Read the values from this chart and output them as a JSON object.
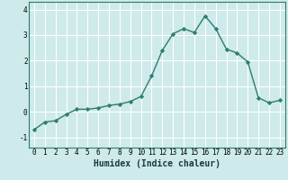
{
  "title": "",
  "xlabel": "Humidex (Indice chaleur)",
  "ylabel": "",
  "x": [
    0,
    1,
    2,
    3,
    4,
    5,
    6,
    7,
    8,
    9,
    10,
    11,
    12,
    13,
    14,
    15,
    16,
    17,
    18,
    19,
    20,
    21,
    22,
    23
  ],
  "y": [
    -0.7,
    -0.4,
    -0.35,
    -0.1,
    0.1,
    0.1,
    0.15,
    0.25,
    0.3,
    0.4,
    0.6,
    1.4,
    2.4,
    3.05,
    3.25,
    3.1,
    3.75,
    3.25,
    2.45,
    2.3,
    1.95,
    0.55,
    0.35,
    0.45
  ],
  "line_color": "#2e7d6e",
  "marker": "D",
  "marker_size": 2.2,
  "bg_color": "#ceeaea",
  "grid_color": "#ffffff",
  "ylim": [
    -1.4,
    4.3
  ],
  "xlim": [
    -0.5,
    23.5
  ],
  "yticks": [
    -1,
    0,
    1,
    2,
    3,
    4
  ],
  "xticks": [
    0,
    1,
    2,
    3,
    4,
    5,
    6,
    7,
    8,
    9,
    10,
    11,
    12,
    13,
    14,
    15,
    16,
    17,
    18,
    19,
    20,
    21,
    22,
    23
  ],
  "tick_fontsize": 5.5,
  "xlabel_fontsize": 7.0,
  "line_width": 1.0,
  "spine_color": "#2e7d6e"
}
